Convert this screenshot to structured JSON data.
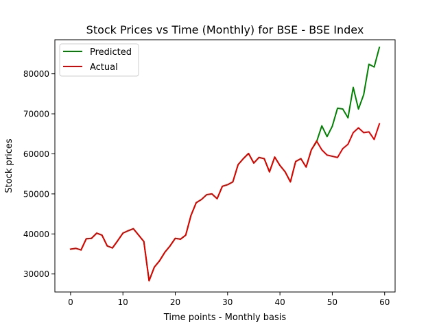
{
  "chart_data": {
    "type": "line",
    "title": "Stock Prices vs Time (Monthly) for BSE - BSE Index",
    "xlabel": "Time points - Monthly basis",
    "ylabel": "Stock prices",
    "xlim": [
      -3,
      62
    ],
    "ylim": [
      25500,
      88500
    ],
    "xticks": [
      0,
      10,
      20,
      30,
      40,
      50,
      60
    ],
    "yticks": [
      30000,
      40000,
      50000,
      60000,
      70000,
      80000
    ],
    "legend_position": "top-left",
    "grid": false,
    "x": [
      0,
      1,
      2,
      3,
      4,
      5,
      6,
      7,
      8,
      9,
      10,
      11,
      12,
      13,
      14,
      15,
      16,
      17,
      18,
      19,
      20,
      21,
      22,
      23,
      24,
      25,
      26,
      27,
      28,
      29,
      30,
      31,
      32,
      33,
      34,
      35,
      36,
      37,
      38,
      39,
      40,
      41,
      42,
      43,
      44,
      45,
      46,
      47,
      48,
      49,
      50,
      51,
      52,
      53,
      54,
      55,
      56,
      57,
      58,
      59
    ],
    "series": [
      {
        "name": "Predicted",
        "color": "#008000",
        "values": [
          36200,
          36400,
          36000,
          38800,
          38900,
          40200,
          39700,
          37000,
          36500,
          38300,
          40200,
          40800,
          41300,
          39700,
          38100,
          28300,
          31700,
          33300,
          35400,
          37000,
          38900,
          38700,
          39700,
          44600,
          47800,
          48600,
          49800,
          50000,
          48800,
          51900,
          52300,
          53000,
          57300,
          58800,
          60100,
          57700,
          59100,
          58800,
          55500,
          59200,
          57100,
          55500,
          53000,
          58100,
          58800,
          56700,
          61000,
          63000,
          67000,
          64300,
          66900,
          71400,
          71200,
          69000,
          76600,
          71200,
          74800,
          82400,
          81700,
          86600
        ]
      },
      {
        "name": "Actual",
        "color": "#e00000",
        "values": [
          36200,
          36400,
          36000,
          38800,
          38900,
          40200,
          39700,
          37000,
          36500,
          38300,
          40200,
          40800,
          41300,
          39700,
          38100,
          28300,
          31700,
          33300,
          35400,
          37000,
          38900,
          38700,
          39700,
          44600,
          47800,
          48600,
          49800,
          50000,
          48800,
          51900,
          52300,
          53000,
          57300,
          58800,
          60100,
          57700,
          59100,
          58800,
          55500,
          59200,
          57100,
          55500,
          53000,
          58100,
          58800,
          56700,
          61000,
          63200,
          61000,
          59700,
          59400,
          59100,
          61300,
          62400,
          65300,
          66500,
          65300,
          65500,
          63600,
          67500
        ]
      }
    ]
  }
}
